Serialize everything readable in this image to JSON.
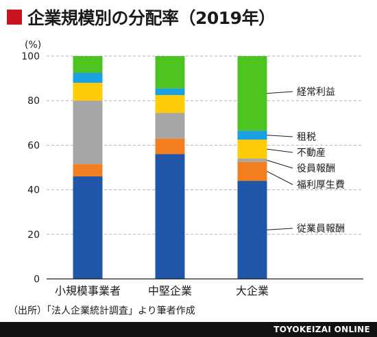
{
  "title": "企業規模別の分配率（2019年）",
  "source": "（出所）「法人企業統計調査」より筆者作成",
  "footer": "TOYOKEIZAI ONLINE",
  "colors": {
    "title_marker": "#c8141e",
    "従業員報酬": "#1f56a8",
    "福利厚生費": "#f47f20",
    "役員報酬": "#a6a6a6",
    "不動産": "#fdcb07",
    "租税": "#1ba0e1",
    "経常利益": "#4dc41f"
  },
  "chart_data": {
    "type": "bar",
    "stacked": true,
    "ylabel": "(%)",
    "ylim": [
      0,
      100
    ],
    "yticks": [
      0,
      20,
      40,
      60,
      80,
      100
    ],
    "grid": "dashed horizontal",
    "categories": [
      "小規模事業者",
      "中堅企業",
      "大企業"
    ],
    "series": [
      {
        "name": "従業員報酬",
        "values": [
          46,
          56,
          44
        ]
      },
      {
        "name": "福利厚生費",
        "values": [
          5.5,
          7,
          8.5
        ]
      },
      {
        "name": "役員報酬",
        "values": [
          28.5,
          11.5,
          1.5
        ]
      },
      {
        "name": "不動産",
        "values": [
          8,
          8,
          8.5
        ]
      },
      {
        "name": "租税",
        "values": [
          4.5,
          3,
          4
        ]
      },
      {
        "name": "経常利益",
        "values": [
          7.5,
          14.5,
          33.5
        ]
      }
    ],
    "annotation_order": [
      "経常利益",
      "租税",
      "不動産",
      "役員報酬",
      "福利厚生費",
      "従業員報酬"
    ]
  }
}
